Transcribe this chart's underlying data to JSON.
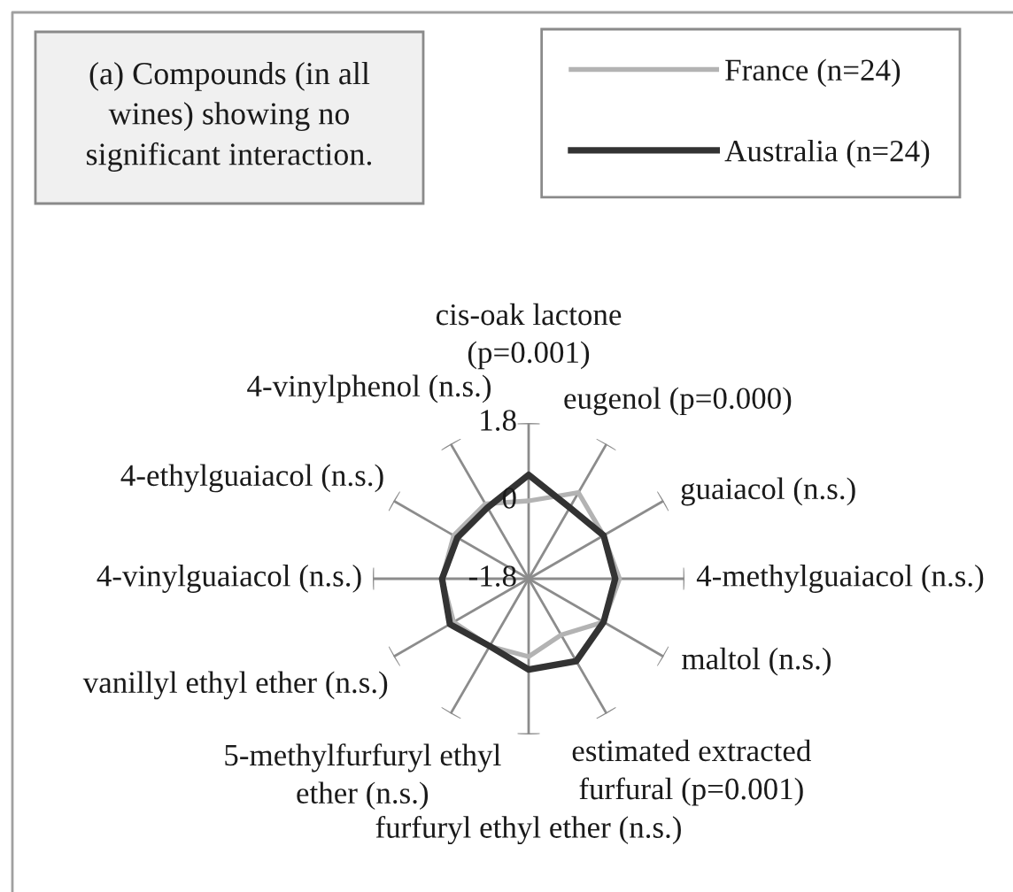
{
  "chart_data": {
    "type": "radar",
    "title": "(a) Compounds (in all\nwines) showing no\nsignificant interaction.",
    "categories": [
      "cis-oak lactone\n(p=0.001)",
      "eugenol (p=0.000)",
      "guaiacol (n.s.)",
      "4-methylguaiacol (n.s.)",
      "maltol (n.s.)",
      "estimated extracted\nfurfural (p=0.001)",
      "furfuryl ethyl ether (n.s.)",
      "5-methylfurfuryl ethyl\nether (n.s.)",
      "vanillyl ethyl ether (n.s.)",
      "4-vinylguaiacol (n.s.)",
      "4-ethylguaiacol (n.s.)",
      "4-vinylphenol (n.s.)"
    ],
    "series": [
      {
        "name": "France (n=24)",
        "color": "#b3b3b3",
        "values": [
          0.0,
          0.5,
          0.2,
          0.3,
          0.2,
          -0.3,
          0.0,
          0.0,
          0.2,
          0.2,
          0.2,
          0.2
        ]
      },
      {
        "name": "Australia (n=24)",
        "color": "#333333",
        "values": [
          0.6,
          0.1,
          0.2,
          0.2,
          0.2,
          0.4,
          0.3,
          0.0,
          0.3,
          0.2,
          0.1,
          0.1
        ]
      }
    ],
    "ylim": [
      -1.8,
      1.8
    ],
    "yticks": [
      -1.8,
      0,
      1.8
    ],
    "grid": "x",
    "legend": "top right"
  }
}
